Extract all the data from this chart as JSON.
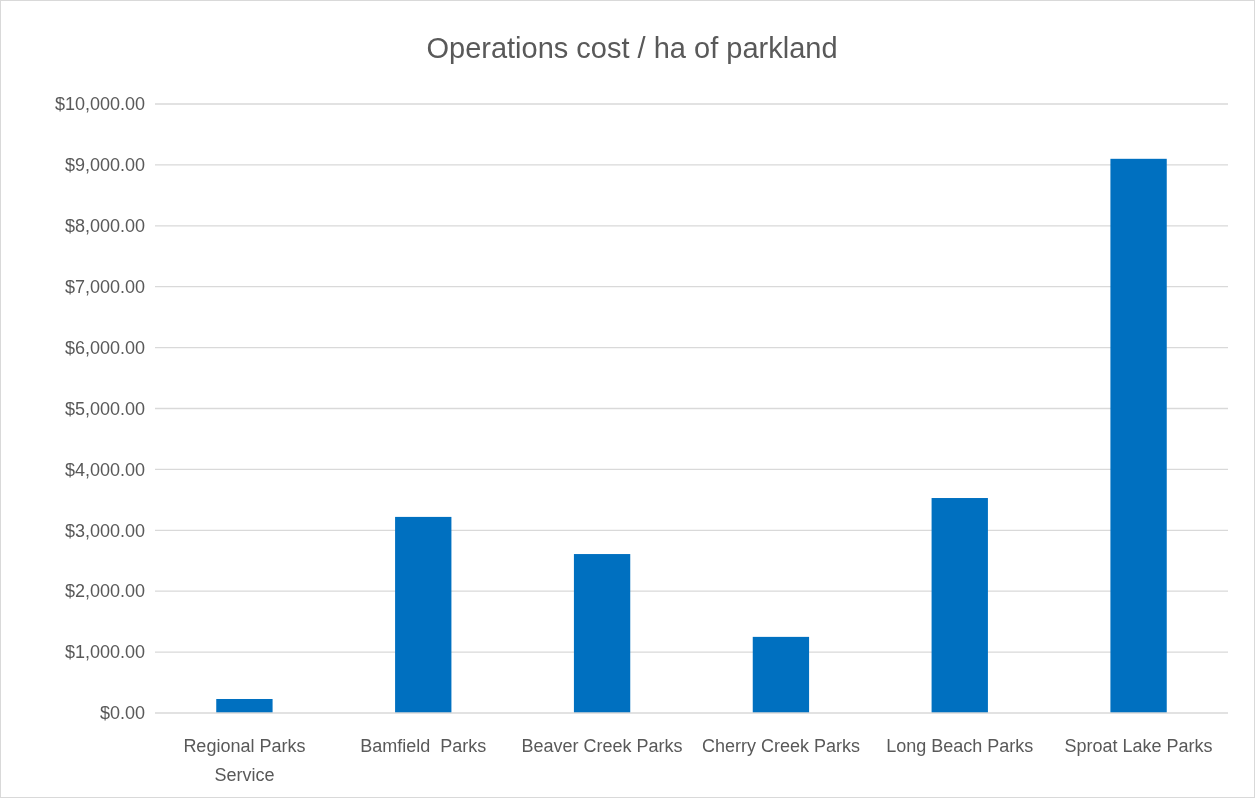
{
  "chart_data": {
    "type": "bar",
    "title": "Operations cost / ha of parkland",
    "categories": [
      "Regional Parks Service",
      "Bamfield  Parks",
      "Beaver Creek Parks",
      "Cherry Creek Parks",
      "Long Beach Parks",
      "Sproat Lake Parks"
    ],
    "values": [
      230,
      3220,
      2610,
      1250,
      3530,
      9100
    ],
    "color": "#0070c0",
    "ylim": [
      0,
      10000
    ],
    "yticks": [
      {
        "value": 0,
        "label": "$0.00"
      },
      {
        "value": 1000,
        "label": "$1,000.00"
      },
      {
        "value": 2000,
        "label": "$2,000.00"
      },
      {
        "value": 3000,
        "label": "$3,000.00"
      },
      {
        "value": 4000,
        "label": "$4,000.00"
      },
      {
        "value": 5000,
        "label": "$5,000.00"
      },
      {
        "value": 6000,
        "label": "$6,000.00"
      },
      {
        "value": 7000,
        "label": "$7,000.00"
      },
      {
        "value": 8000,
        "label": "$8,000.00"
      },
      {
        "value": 9000,
        "label": "$9,000.00"
      },
      {
        "value": 10000,
        "label": "$10,000.00"
      }
    ],
    "grid": true
  }
}
